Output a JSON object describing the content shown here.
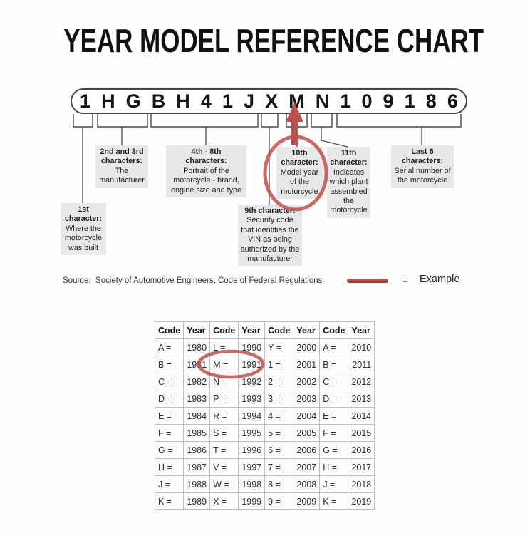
{
  "title": "YEAR MODEL REFERENCE CHART",
  "vin": {
    "characters": [
      "1",
      "H",
      "G",
      "B",
      "H",
      "4",
      "1",
      "J",
      "X",
      "M",
      "N",
      "1",
      "0",
      "9",
      "1",
      "8",
      "6"
    ]
  },
  "diagram": {
    "labels": [
      {
        "id": "label-1st",
        "head": "1st\ncharacter:",
        "body": "Where the\nmotorcycle\nwas built"
      },
      {
        "id": "label-2nd3rd",
        "head": "2nd and 3rd\ncharacters:",
        "body": "The\nmanufacturer"
      },
      {
        "id": "label-4th8th",
        "head": "4th - 8th\ncharacters:",
        "body": "Portrait of the\nmotorcycle - brand,\nengine size and type"
      },
      {
        "id": "label-9th",
        "head": "9th character:",
        "body": "Security code\nthat identifies the\nVIN as being\nauthorized by the\nmanufacturer"
      },
      {
        "id": "label-10th",
        "head": "10th\ncharacter:",
        "body": "Model year\nof the\nmotorcycle"
      },
      {
        "id": "label-11th",
        "head": "11th\ncharacter:",
        "body": "Indicates\nwhich plant\nassembled\nthe\nmotorcycle"
      },
      {
        "id": "label-last6",
        "head": "Last 6\ncharacters:",
        "body": "Serial number of\nthe motorcycle"
      }
    ]
  },
  "source_row": {
    "source": "Source:  Society of Automotive Engineers, Code of Federal Regulations",
    "equals": "=",
    "example": "Example"
  },
  "table": {
    "headers": [
      "Code",
      "Year",
      "Code",
      "Year",
      "Code",
      "Year",
      "Code",
      "Year"
    ],
    "rows": [
      [
        "A =",
        "1980",
        "L =",
        "1990",
        "Y =",
        "2000",
        "A =",
        "2010"
      ],
      [
        "B =",
        "1981",
        "M =",
        "1991",
        "1 =",
        "2001",
        "B =",
        "2011"
      ],
      [
        "C =",
        "1982",
        "N =",
        "1992",
        "2 =",
        "2002",
        "C =",
        "2012"
      ],
      [
        "D =",
        "1983",
        "P =",
        "1993",
        "3 =",
        "2003",
        "D =",
        "2013"
      ],
      [
        "E =",
        "1984",
        "R =",
        "1994",
        "4 =",
        "2004",
        "E =",
        "2014"
      ],
      [
        "F =",
        "1985",
        "S =",
        "1995",
        "5 =",
        "2005",
        "F =",
        "2015"
      ],
      [
        "G =",
        "1986",
        "T =",
        "1996",
        "6 =",
        "2006",
        "G =",
        "2016"
      ],
      [
        "H =",
        "1987",
        "V =",
        "1997",
        "7 =",
        "2007",
        "H =",
        "2017"
      ],
      [
        "J =",
        "1988",
        "W =",
        "1998",
        "8 =",
        "2008",
        "J =",
        "2018"
      ],
      [
        "K =",
        "1989",
        "X =",
        "1999",
        "9 =",
        "2009",
        "K =",
        "2019"
      ]
    ]
  },
  "colors": {
    "accent_red": "#c0504d",
    "label_background": "#e8e8e8",
    "line_color": "#4a4a4a"
  }
}
